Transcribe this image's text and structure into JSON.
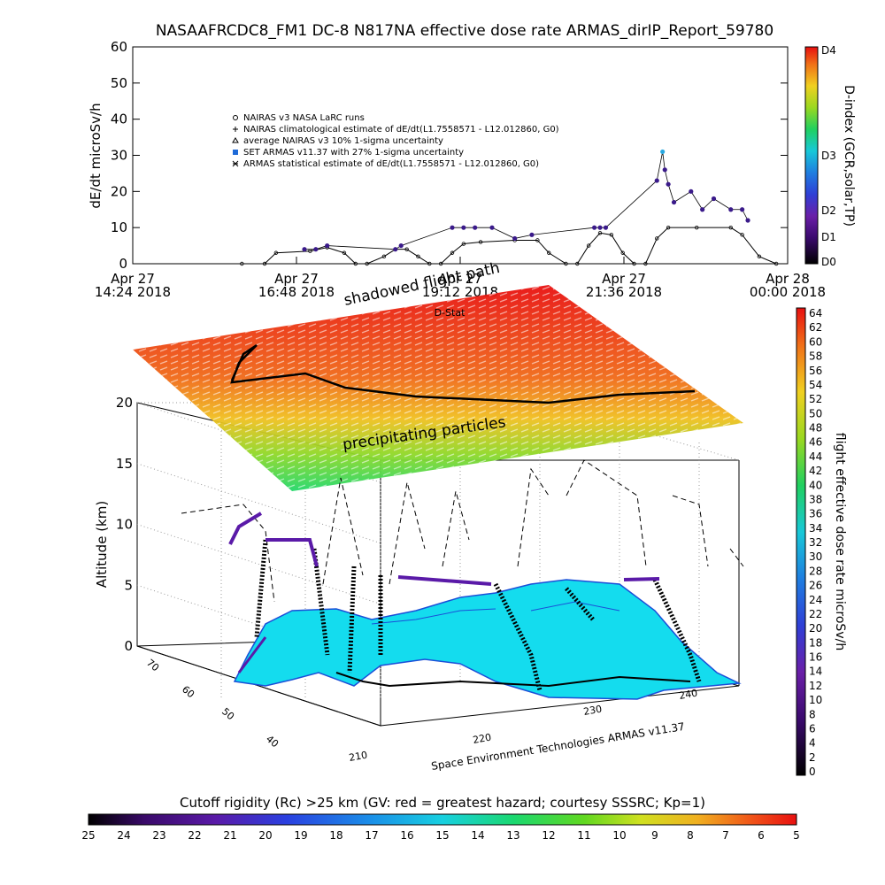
{
  "title": "NASAAFRCDC8_FM1 DC-8    N817NA effective dose rate ARMAS_dirIP_Report_59780",
  "colors": {
    "nairas_runs": "#000000",
    "nairas_climatological": "#000000",
    "armas_points": "#3a1a8a",
    "armas_highlight": "#1e6ad8",
    "peak_point": "#29a8e0",
    "grid": "#999999",
    "map_fill": "#14dcee"
  },
  "chart_data": [
    {
      "type": "line",
      "ylabel": "dE/dt microSv/h",
      "ylim": [
        0,
        60
      ],
      "yticks": [
        0,
        10,
        20,
        30,
        40,
        50,
        60
      ],
      "xticks": [
        {
          "top": "Apr 27",
          "bottom": "14:24 2018"
        },
        {
          "top": "Apr 27",
          "bottom": "16:48 2018"
        },
        {
          "top": "Apr 27",
          "bottom": "19:12 2018"
        },
        {
          "top": "Apr 27",
          "bottom": "21:36 2018"
        },
        {
          "top": "Apr 28",
          "bottom": "00:00 2018"
        }
      ],
      "legend_placement": "upper-left inside",
      "legend": [
        {
          "symbol": "open-circle",
          "label": "NAIRAS v3 NASA LaRC runs"
        },
        {
          "symbol": "plus",
          "label": "NAIRAS climatological estimate of dE/dt(L1.7558571 - L12.012860, G0)"
        },
        {
          "symbol": "triangle",
          "label": "average NAIRAS v3 10% 1-sigma uncertainty"
        },
        {
          "symbol": "filled-square",
          "label": "SET ARMAS v11.37 with 27% 1-sigma uncertainty"
        },
        {
          "symbol": "star",
          "label": "ARMAS statistical estimate of dE/dt(L1.7558571 - L12.012860, G0)"
        }
      ],
      "series": [
        {
          "name": "NAIRAS climatological estimate of dE/dt(L1.7558571 - L12.012860, G0)",
          "points": [
            [
              "16:00",
              0
            ],
            [
              "16:20",
              0
            ],
            [
              "16:30",
              3
            ],
            [
              "17:00",
              3.5
            ],
            [
              "17:15",
              4.5
            ],
            [
              "17:30",
              3
            ],
            [
              "17:40",
              0
            ],
            [
              "17:50",
              0
            ],
            [
              "18:05",
              2
            ],
            [
              "18:15",
              4
            ],
            [
              "18:25",
              4
            ],
            [
              "18:35",
              2
            ],
            [
              "18:45",
              0
            ],
            [
              "18:55",
              0
            ],
            [
              "19:05",
              3
            ],
            [
              "19:15",
              5.5
            ],
            [
              "19:30",
              6
            ],
            [
              "20:00",
              6.5
            ],
            [
              "20:20",
              6.5
            ],
            [
              "20:30",
              3
            ],
            [
              "20:45",
              0
            ],
            [
              "20:55",
              0
            ],
            [
              "21:05",
              5
            ],
            [
              "21:15",
              8.5
            ],
            [
              "21:25",
              8
            ],
            [
              "21:35",
              3
            ],
            [
              "21:45",
              0
            ],
            [
              "21:55",
              0
            ],
            [
              "22:05",
              7
            ],
            [
              "22:15",
              10
            ],
            [
              "22:40",
              10
            ],
            [
              "23:10",
              10
            ],
            [
              "23:20",
              8
            ],
            [
              "23:35",
              2
            ],
            [
              "23:50",
              0
            ]
          ]
        },
        {
          "name": "SET ARMAS v11.37 with 27% 1-sigma uncertainty",
          "points": [
            [
              "16:55",
              4
            ],
            [
              "17:05",
              4
            ],
            [
              "17:15",
              5
            ],
            [
              "18:15",
              4
            ],
            [
              "18:20",
              5
            ],
            [
              "19:05",
              10
            ],
            [
              "19:15",
              10
            ],
            [
              "19:25",
              10
            ],
            [
              "19:40",
              10
            ],
            [
              "20:00",
              7
            ],
            [
              "20:15",
              8
            ],
            [
              "21:10",
              10
            ],
            [
              "21:15",
              10
            ],
            [
              "21:20",
              10
            ],
            [
              "22:05",
              23
            ],
            [
              "22:10",
              31
            ],
            [
              "22:12",
              26
            ],
            [
              "22:15",
              22
            ],
            [
              "22:20",
              17
            ],
            [
              "22:35",
              20
            ],
            [
              "22:45",
              15
            ],
            [
              "22:55",
              18
            ],
            [
              "23:10",
              15
            ],
            [
              "23:20",
              15
            ],
            [
              "23:25",
              12
            ]
          ]
        }
      ]
    },
    {
      "type": "scatter",
      "zlabel": "Altitude (km)",
      "zticks": [
        0,
        5,
        10,
        15,
        20
      ],
      "x_ticks": [
        "70",
        "60",
        "50",
        "40"
      ],
      "y_ticks": [
        "210",
        "220",
        "230",
        "240"
      ],
      "annotations": [
        "shadowed flight path",
        "D-Stat",
        "precipitating particles"
      ],
      "credit": "Space Environment Technologies ARMAS v11.37"
    }
  ],
  "colorbars": {
    "d_index": {
      "label": "D-index (GCR,solar,TP)",
      "ticks": [
        "D4",
        "D3",
        "D2",
        "D1",
        "D0"
      ]
    },
    "dose": {
      "label": "flight effective dose rate microSv/h",
      "ticks": [
        "64",
        "62",
        "60",
        "58",
        "56",
        "54",
        "52",
        "50",
        "48",
        "46",
        "44",
        "42",
        "40",
        "38",
        "36",
        "34",
        "32",
        "30",
        "28",
        "26",
        "24",
        "22",
        "20",
        "18",
        "16",
        "14",
        "12",
        "10",
        "8",
        "6",
        "4",
        "2",
        "0"
      ]
    },
    "cutoff": {
      "label": "Cutoff rigidity (Rc) >25 km (GV: red = greatest hazard; courtesy SSSRC; Kp=1)",
      "ticks": [
        "25",
        "24",
        "23",
        "22",
        "21",
        "20",
        "19",
        "18",
        "17",
        "16",
        "15",
        "14",
        "13",
        "12",
        "11",
        "10",
        "9",
        "8",
        "7",
        "6",
        "5"
      ]
    }
  }
}
